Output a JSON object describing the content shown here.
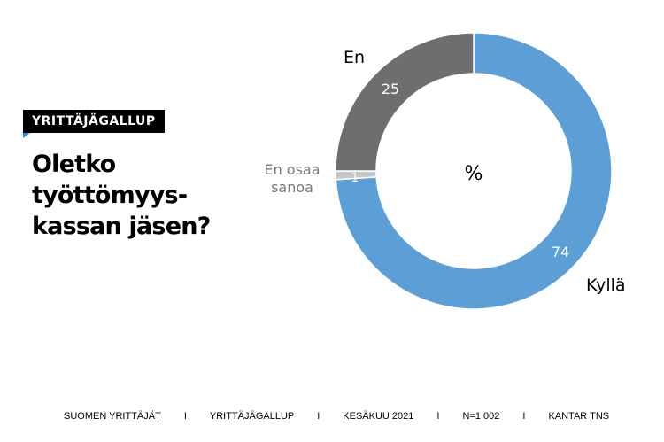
{
  "badge": "YRITTÄJÄGALLUP",
  "title_lines": [
    "Oletko",
    "työttömyys-",
    "kassan jäsen?"
  ],
  "chart_data": {
    "type": "pie",
    "donut": true,
    "center_label": "%",
    "slices": [
      {
        "label": "Kyllä",
        "value": 74,
        "color": "#5b9fd6"
      },
      {
        "label_lines": [
          "En osaa",
          "sanoa"
        ],
        "value": 1,
        "color": "#c8c8c8"
      },
      {
        "label": "En",
        "value": 25,
        "color": "#6e6e6e"
      }
    ]
  },
  "footer": {
    "items": [
      "SUOMEN YRITTÄJÄT",
      "YRITTÄJÄGALLUP",
      "KESÄKUU 2021",
      "N=1 002",
      "KANTAR TNS"
    ],
    "separator": "I"
  }
}
